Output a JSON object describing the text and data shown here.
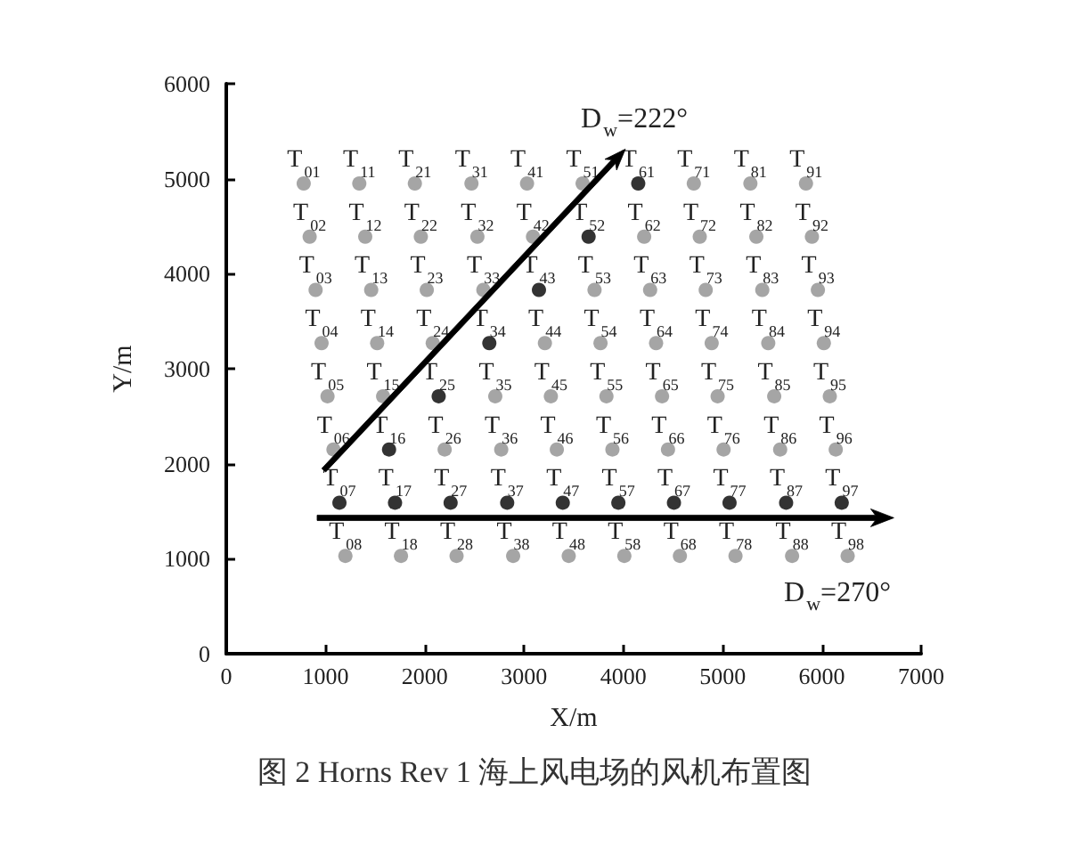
{
  "chart_data": {
    "type": "scatter",
    "title": "图 2 Horns Rev 1 海上风电场的风机布置图",
    "xlabel": "X/m",
    "ylabel": "Y/m",
    "xlim": [
      0,
      7000
    ],
    "ylim": [
      0,
      6000
    ],
    "xticks": [
      0,
      1000,
      2000,
      3000,
      4000,
      5000,
      6000,
      7000
    ],
    "yticks": [
      0,
      1000,
      2000,
      3000,
      4000,
      5000,
      6000
    ],
    "marker": "circle",
    "series": [
      {
        "color": "#8f8f8f",
        "x": [
          780,
          1340,
          1900,
          2470,
          3030,
          3590,
          4710,
          5280,
          5840,
          840,
          1400,
          1960,
          2530,
          3090,
          4210,
          4770,
          5340,
          5900,
          900,
          1460,
          2020,
          2590,
          3710,
          4270,
          4830,
          5400,
          5960,
          960,
          1520,
          2080,
          3210,
          3770,
          4330,
          4890,
          5460,
          6020,
          1020,
          1580,
          2710,
          3270,
          3830,
          4390,
          4950,
          5520,
          6080,
          1080,
          2200,
          2770,
          3330,
          3890,
          4450,
          5010,
          5580,
          6140,
          1200,
          1760,
          2320,
          2890,
          3450,
          4010,
          4570,
          5130,
          5700,
          6260
        ],
        "values": [
          4950,
          4950,
          4950,
          4950,
          4950,
          4950,
          4950,
          4950,
          4950,
          4390,
          4390,
          4390,
          4390,
          4390,
          4390,
          4390,
          4390,
          4390,
          3830,
          3830,
          3830,
          3830,
          3830,
          3830,
          3830,
          3830,
          3830,
          3270,
          3270,
          3270,
          3270,
          3270,
          3270,
          3270,
          3270,
          3270,
          2710,
          2710,
          2710,
          2710,
          2710,
          2710,
          2710,
          2710,
          2710,
          2150,
          2150,
          2150,
          2150,
          2150,
          2150,
          2150,
          2150,
          2150,
          1030,
          1030,
          1030,
          1030,
          1030,
          1030,
          1030,
          1030,
          1030,
          1030
        ]
      },
      {
        "color": "#000000",
        "x": [
          4150,
          3650,
          3150,
          2650,
          2140,
          1640,
          1140,
          1700,
          2260,
          2830,
          3390,
          3950,
          4510,
          5070,
          5640,
          6200
        ],
        "values": [
          4950,
          4390,
          3830,
          3270,
          2710,
          2150,
          1590,
          1590,
          1590,
          1590,
          1590,
          1590,
          1590,
          1590,
          1590,
          1590
        ]
      }
    ],
    "annotations": [
      {
        "text": "T$_{01}$",
        "x": 780,
        "y": 4950
      },
      {
        "text": "T$_{11}$",
        "x": 1340,
        "y": 4950
      },
      {
        "text": "T$_{21}$",
        "x": 1900,
        "y": 4950
      },
      {
        "text": "T$_{31}$",
        "x": 2470,
        "y": 4950
      },
      {
        "text": "T$_{41}$",
        "x": 3030,
        "y": 4950
      },
      {
        "text": "T$_{51}$",
        "x": 3590,
        "y": 4950
      },
      {
        "text": "T$_{61}$",
        "x": 4150,
        "y": 4950
      },
      {
        "text": "T$_{71}$",
        "x": 4710,
        "y": 4950
      },
      {
        "text": "T$_{81}$",
        "x": 5280,
        "y": 4950
      },
      {
        "text": "T$_{91}$",
        "x": 5840,
        "y": 4950
      },
      {
        "text": "T$_{02}$",
        "x": 840,
        "y": 4390
      },
      {
        "text": "T$_{12}$",
        "x": 1400,
        "y": 4390
      },
      {
        "text": "T$_{22}$",
        "x": 1960,
        "y": 4390
      },
      {
        "text": "T$_{32}$",
        "x": 2530,
        "y": 4390
      },
      {
        "text": "T$_{42}$",
        "x": 3090,
        "y": 4390
      },
      {
        "text": "T$_{52}$",
        "x": 3650,
        "y": 4390
      },
      {
        "text": "T$_{62}$",
        "x": 4210,
        "y": 4390
      },
      {
        "text": "T$_{72}$",
        "x": 4770,
        "y": 4390
      },
      {
        "text": "T$_{82}$",
        "x": 5340,
        "y": 4390
      },
      {
        "text": "T$_{92}$",
        "x": 5900,
        "y": 4390
      },
      {
        "text": "T$_{03}$",
        "x": 900,
        "y": 3830
      },
      {
        "text": "T$_{13}$",
        "x": 1460,
        "y": 3830
      },
      {
        "text": "T$_{23}$",
        "x": 2020,
        "y": 3830
      },
      {
        "text": "T$_{33}$",
        "x": 2590,
        "y": 3830
      },
      {
        "text": "T$_{43}$",
        "x": 3150,
        "y": 3830
      },
      {
        "text": "T$_{53}$",
        "x": 3710,
        "y": 3830
      },
      {
        "text": "T$_{63}$",
        "x": 4270,
        "y": 3830
      },
      {
        "text": "T$_{73}$",
        "x": 4830,
        "y": 3830
      },
      {
        "text": "T$_{83}$",
        "x": 5400,
        "y": 3830
      },
      {
        "text": "T$_{93}$",
        "x": 5960,
        "y": 3830
      },
      {
        "text": "T$_{04}$",
        "x": 960,
        "y": 3270
      },
      {
        "text": "T$_{14}$",
        "x": 1520,
        "y": 3270
      },
      {
        "text": "T$_{24}$",
        "x": 2080,
        "y": 3270
      },
      {
        "text": "T$_{34}$",
        "x": 2650,
        "y": 3270
      },
      {
        "text": "T$_{44}$",
        "x": 3210,
        "y": 3270
      },
      {
        "text": "T$_{54}$",
        "x": 3770,
        "y": 3270
      },
      {
        "text": "T$_{64}$",
        "x": 4330,
        "y": 3270
      },
      {
        "text": "T$_{74}$",
        "x": 4890,
        "y": 3270
      },
      {
        "text": "T$_{84}$",
        "x": 5460,
        "y": 3270
      },
      {
        "text": "T$_{94}$",
        "x": 6020,
        "y": 3270
      },
      {
        "text": "T$_{05}$",
        "x": 1020,
        "y": 2710
      },
      {
        "text": "T$_{15}$",
        "x": 1580,
        "y": 2710
      },
      {
        "text": "T$_{25}$",
        "x": 2140,
        "y": 2710
      },
      {
        "text": "T$_{35}$",
        "x": 2710,
        "y": 2710
      },
      {
        "text": "T$_{45}$",
        "x": 3270,
        "y": 2710
      },
      {
        "text": "T$_{55}$",
        "x": 3830,
        "y": 2710
      },
      {
        "text": "T$_{65}$",
        "x": 4390,
        "y": 2710
      },
      {
        "text": "T$_{75}$",
        "x": 4950,
        "y": 2710
      },
      {
        "text": "T$_{85}$",
        "x": 5520,
        "y": 2710
      },
      {
        "text": "T$_{95}$",
        "x": 6080,
        "y": 2710
      },
      {
        "text": "T$_{06}$",
        "x": 1080,
        "y": 2150
      },
      {
        "text": "T$_{16}$",
        "x": 1640,
        "y": 2150
      },
      {
        "text": "T$_{26}$",
        "x": 2200,
        "y": 2150
      },
      {
        "text": "T$_{36}$",
        "x": 2770,
        "y": 2150
      },
      {
        "text": "T$_{46}$",
        "x": 3330,
        "y": 2150
      },
      {
        "text": "T$_{56}$",
        "x": 3890,
        "y": 2150
      },
      {
        "text": "T$_{66}$",
        "x": 4450,
        "y": 2150
      },
      {
        "text": "T$_{76}$",
        "x": 5010,
        "y": 2150
      },
      {
        "text": "T$_{86}$",
        "x": 5580,
        "y": 2150
      },
      {
        "text": "T$_{96}$",
        "x": 6140,
        "y": 2150
      },
      {
        "text": "T$_{07}$",
        "x": 1140,
        "y": 1590
      },
      {
        "text": "T$_{17}$",
        "x": 1700,
        "y": 1590
      },
      {
        "text": "T$_{27}$",
        "x": 2260,
        "y": 1590
      },
      {
        "text": "T$_{37}$",
        "x": 2830,
        "y": 1590
      },
      {
        "text": "T$_{47}$",
        "x": 3390,
        "y": 1590
      },
      {
        "text": "T$_{57}$",
        "x": 3950,
        "y": 1590
      },
      {
        "text": "T$_{67}$",
        "x": 4510,
        "y": 1590
      },
      {
        "text": "T$_{77}$",
        "x": 5070,
        "y": 1590
      },
      {
        "text": "T$_{87}$",
        "x": 5640,
        "y": 1590
      },
      {
        "text": "T$_{97}$",
        "x": 6200,
        "y": 1590
      },
      {
        "text": "T$_{08}$",
        "x": 1200,
        "y": 1030
      },
      {
        "text": "T$_{18}$",
        "x": 1760,
        "y": 1030
      },
      {
        "text": "T$_{28}$",
        "x": 2320,
        "y": 1030
      },
      {
        "text": "T$_{38}$",
        "x": 2890,
        "y": 1030
      },
      {
        "text": "T$_{48}$",
        "x": 3450,
        "y": 1030
      },
      {
        "text": "T$_{58}$",
        "x": 4010,
        "y": 1030
      },
      {
        "text": "T$_{68}$",
        "x": 4570,
        "y": 1030
      },
      {
        "text": "T$_{78}$",
        "x": 5130,
        "y": 1030
      },
      {
        "text": "T$_{88}$",
        "x": 5700,
        "y": 1030
      },
      {
        "text": "T$_{98}$",
        "x": 6260,
        "y": 1030
      },
      "D$_{w}$=222°",
      "D$_{w}$=270°"
    ]
  }
}
